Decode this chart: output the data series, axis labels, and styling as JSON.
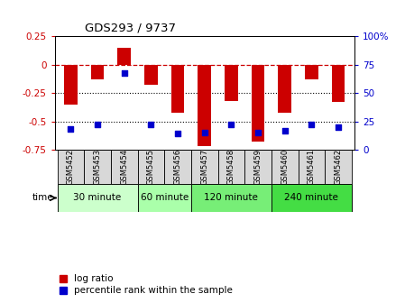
{
  "title": "GDS293 / 9737",
  "samples": [
    "GSM5452",
    "GSM5453",
    "GSM5454",
    "GSM5455",
    "GSM5456",
    "GSM5457",
    "GSM5458",
    "GSM5459",
    "GSM5460",
    "GSM5461",
    "GSM5462"
  ],
  "log_ratios": [
    -0.35,
    -0.13,
    0.15,
    -0.18,
    -0.42,
    -0.72,
    -0.32,
    -0.68,
    -0.42,
    -0.13,
    -0.33
  ],
  "percentile_ranks": [
    18,
    22,
    68,
    22,
    14,
    15,
    22,
    15,
    17,
    22,
    20
  ],
  "bar_color": "#cc0000",
  "dot_color": "#0000cc",
  "ylim_left": [
    -0.75,
    0.25
  ],
  "ylim_right": [
    0,
    100
  ],
  "yticks_left": [
    -0.75,
    -0.5,
    -0.25,
    0,
    0.25
  ],
  "yticks_right": [
    0,
    25,
    50,
    75,
    100
  ],
  "groups": [
    {
      "label": "30 minute",
      "start": 0,
      "end": 2,
      "color": "#ccffcc"
    },
    {
      "label": "60 minute",
      "start": 3,
      "end": 4,
      "color": "#aaffaa"
    },
    {
      "label": "120 minute",
      "start": 5,
      "end": 7,
      "color": "#77ee77"
    },
    {
      "label": "240 minute",
      "start": 8,
      "end": 10,
      "color": "#44dd44"
    }
  ],
  "time_label": "time",
  "legend1": "log ratio",
  "legend2": "percentile rank within the sample",
  "dotted_lines": [
    -0.25,
    -0.5
  ],
  "bar_width": 0.5,
  "xlabel_bg": "#d8d8d8",
  "plot_bg": "#ffffff"
}
